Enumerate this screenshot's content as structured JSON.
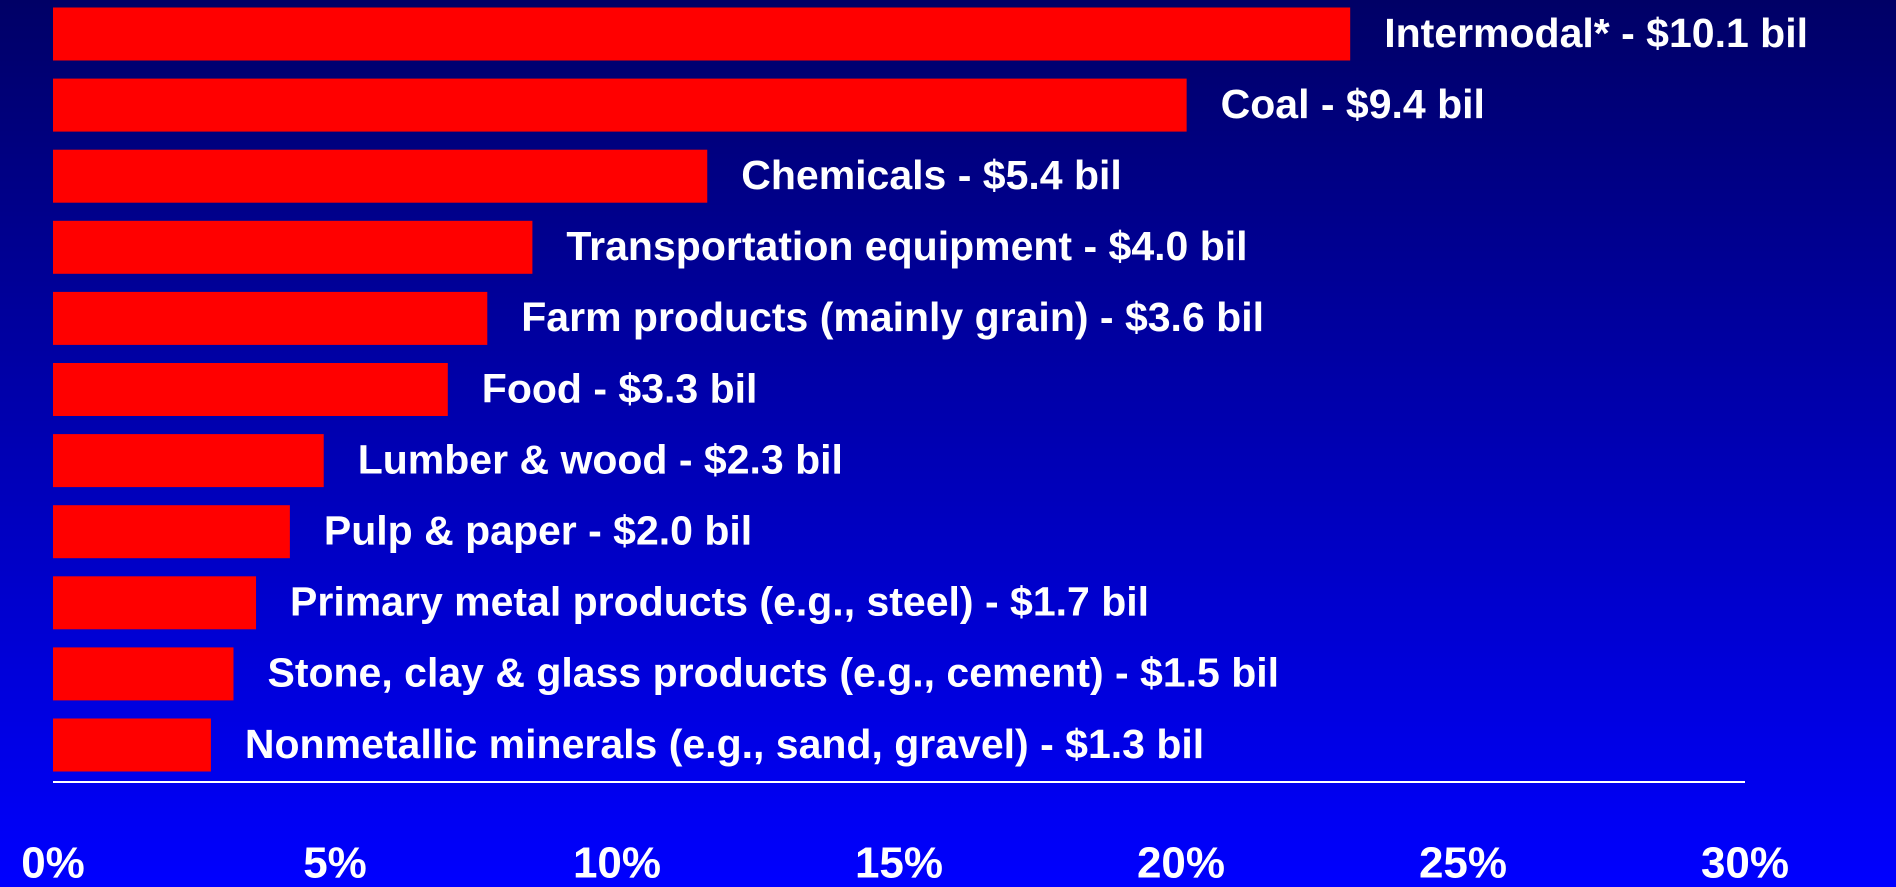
{
  "chart_data": {
    "type": "barh",
    "categories": [
      "Intermodal* -  $10.1 bil",
      "Coal - $9.4 bil",
      "Chemicals - $5.4 bil",
      "Transportation equipment - $4.0 bil",
      "Farm products (mainly grain) - $3.6 bil",
      "Food - $3.3 bil",
      "Lumber & wood - $2.3 bil",
      "Pulp & paper - $2.0 bil",
      "Primary metal products (e.g., steel) - $1.7 bil",
      "Stone, clay & glass products (e.g., cement) - $1.5 bil",
      "Nonmetallic minerals (e.g., sand, gravel) - $1.3 bil"
    ],
    "values": [
      23,
      20.1,
      11.6,
      8.5,
      7.7,
      7.0,
      4.8,
      4.2,
      3.6,
      3.2,
      2.8
    ],
    "color": "#ff0000",
    "xlim": [
      0,
      30
    ],
    "xticks": [
      {
        "value": 0,
        "label": "0%"
      },
      {
        "value": 5,
        "label": "5%"
      },
      {
        "value": 10,
        "label": "10%"
      },
      {
        "value": 15,
        "label": "15%"
      },
      {
        "value": 20,
        "label": "20%"
      },
      {
        "value": 25,
        "label": "25%"
      },
      {
        "value": 30,
        "label": "30%"
      }
    ]
  }
}
